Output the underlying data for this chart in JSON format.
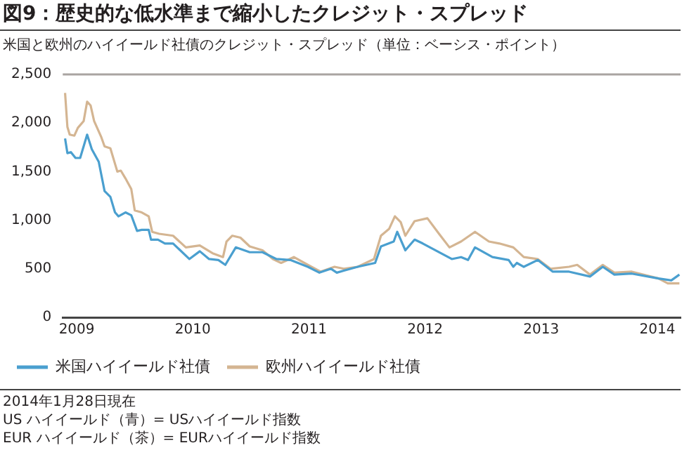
{
  "chart_data": {
    "type": "line",
    "title": "図9：歴史的な低水準まで縮小したクレジット・スプレッド",
    "subtitle": "米国と欧州のハイイールド社債のクレジット・スプレッド（単位：ベーシス・ポイント）",
    "xlim": [
      2008.88,
      2014.2
    ],
    "xticks": [
      2009,
      2010,
      2011,
      2012,
      2013,
      2014
    ],
    "ylim": [
      0,
      2500
    ],
    "yticks": [
      0,
      500,
      {
        "value": 1000,
        "label": "1,000"
      },
      {
        "value": 1500,
        "label": "1,500"
      },
      {
        "value": 2000,
        "label": "2,000"
      },
      {
        "value": 2500,
        "label": "2,500"
      }
    ],
    "grid": false,
    "legend": "bottom left",
    "marker": "none",
    "line_style": "solid",
    "series": [
      {
        "name": "米国ハイイールド社債",
        "color": "#4a9fcf",
        "x": [
          2008.9,
          2008.92,
          2008.95,
          2008.99,
          2009.03,
          2009.09,
          2009.13,
          2009.19,
          2009.24,
          2009.29,
          2009.33,
          2009.36,
          2009.42,
          2009.47,
          2009.52,
          2009.56,
          2009.62,
          2009.64,
          2009.7,
          2009.76,
          2009.83,
          2009.97,
          2010.06,
          2010.14,
          2010.22,
          2010.28,
          2010.37,
          2010.49,
          2010.6,
          2010.72,
          2010.84,
          2010.99,
          2011.09,
          2011.19,
          2011.24,
          2011.3,
          2011.42,
          2011.57,
          2011.62,
          2011.73,
          2011.76,
          2011.83,
          2011.91,
          2011.98,
          2012.23,
          2012.31,
          2012.37,
          2012.43,
          2012.58,
          2012.72,
          2012.76,
          2012.79,
          2012.85,
          2012.97,
          2013.1,
          2013.24,
          2013.42,
          2013.53,
          2013.63,
          2013.78,
          2014.01,
          2014.12,
          2014.19
        ],
        "values": [
          1840,
          1690,
          1700,
          1640,
          1640,
          1880,
          1730,
          1600,
          1300,
          1240,
          1080,
          1040,
          1080,
          1050,
          890,
          900,
          900,
          800,
          800,
          760,
          760,
          600,
          680,
          600,
          590,
          540,
          720,
          670,
          670,
          600,
          590,
          520,
          460,
          500,
          460,
          480,
          520,
          560,
          730,
          780,
          880,
          690,
          800,
          760,
          600,
          620,
          590,
          720,
          620,
          590,
          520,
          560,
          520,
          590,
          470,
          470,
          420,
          520,
          440,
          450,
          400,
          380,
          440
        ]
      },
      {
        "name": "欧州ハイイールド社債",
        "color": "#d4b592",
        "x": [
          2008.9,
          2008.92,
          2008.94,
          2008.98,
          2009.01,
          2009.06,
          2009.09,
          2009.12,
          2009.15,
          2009.21,
          2009.24,
          2009.29,
          2009.35,
          2009.38,
          2009.42,
          2009.47,
          2009.5,
          2009.56,
          2009.62,
          2009.65,
          2009.71,
          2009.83,
          2009.94,
          2010.06,
          2010.17,
          2010.26,
          2010.29,
          2010.34,
          2010.41,
          2010.49,
          2010.6,
          2010.69,
          2010.76,
          2010.87,
          2010.99,
          2011.1,
          2011.22,
          2011.3,
          2011.42,
          2011.56,
          2011.62,
          2011.69,
          2011.74,
          2011.79,
          2011.83,
          2011.91,
          2012.02,
          2012.12,
          2012.21,
          2012.31,
          2012.43,
          2012.55,
          2012.64,
          2012.76,
          2012.85,
          2012.97,
          2013.08,
          2013.24,
          2013.31,
          2013.42,
          2013.53,
          2013.63,
          2013.78,
          2014.01,
          2014.09,
          2014.19
        ],
        "values": [
          2310,
          1960,
          1880,
          1870,
          1950,
          2020,
          2220,
          2180,
          2020,
          1860,
          1760,
          1740,
          1500,
          1510,
          1430,
          1320,
          1100,
          1080,
          1040,
          880,
          860,
          840,
          720,
          740,
          660,
          620,
          780,
          840,
          820,
          730,
          690,
          600,
          560,
          620,
          540,
          470,
          520,
          500,
          520,
          600,
          840,
          910,
          1040,
          980,
          840,
          990,
          1020,
          860,
          720,
          780,
          880,
          780,
          760,
          720,
          620,
          600,
          500,
          520,
          540,
          440,
          540,
          460,
          470,
          400,
          350,
          350
        ]
      }
    ],
    "annotations": [
      "2014年1月28日現在",
      "US ハイイールド（青）= USハイイールド指数",
      "EUR ハイイールド（茶）= EURハイイールド指数"
    ]
  }
}
